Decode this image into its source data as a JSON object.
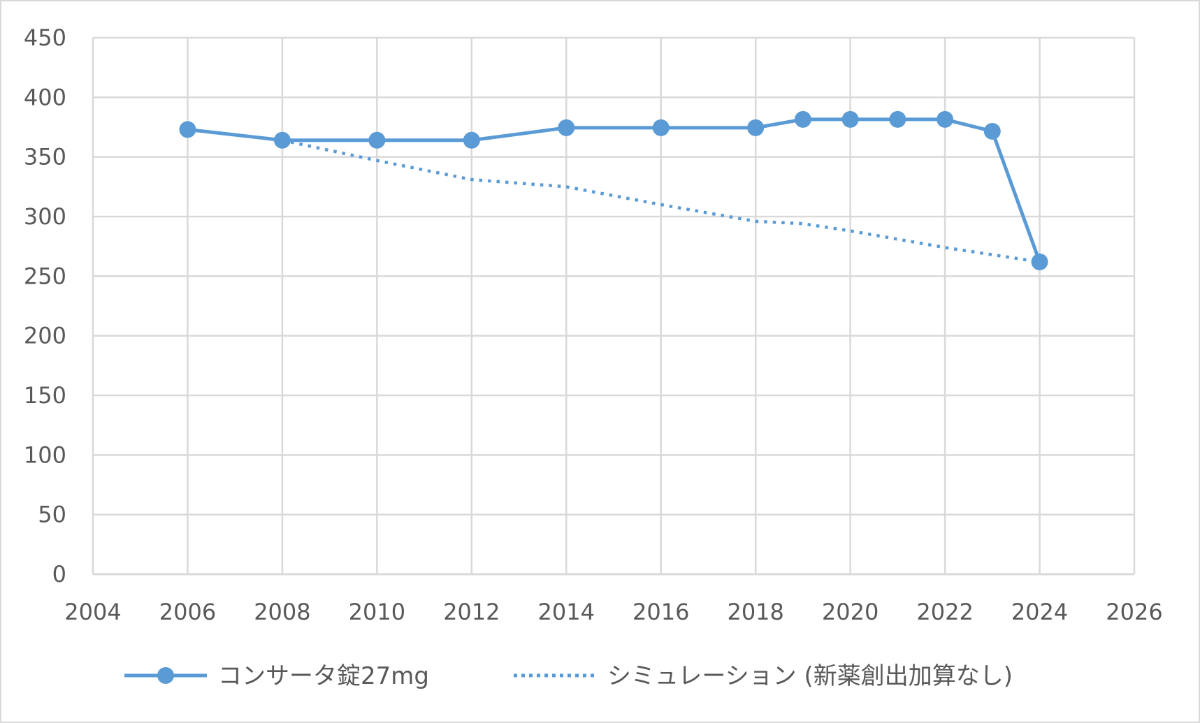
{
  "chart_data": {
    "type": "line",
    "title": "",
    "xlabel": "",
    "ylabel": "",
    "xlim": [
      2004,
      2026
    ],
    "ylim": [
      0,
      450
    ],
    "x_ticks": [
      2004,
      2006,
      2008,
      2010,
      2012,
      2014,
      2016,
      2018,
      2020,
      2022,
      2024,
      2026
    ],
    "y_ticks": [
      0,
      50,
      100,
      150,
      200,
      250,
      300,
      350,
      400,
      450
    ],
    "grid": true,
    "legend_position": "bottom",
    "series": [
      {
        "name": "コンサータ錠27mg",
        "style": "solid",
        "markers": true,
        "color": "#5b9bd5",
        "points": [
          {
            "x": 2006,
            "y": 373
          },
          {
            "x": 2008,
            "y": 364
          },
          {
            "x": 2010,
            "y": 364
          },
          {
            "x": 2012,
            "y": 364
          },
          {
            "x": 2014,
            "y": 374.5
          },
          {
            "x": 2016,
            "y": 374.5
          },
          {
            "x": 2018,
            "y": 374.5
          },
          {
            "x": 2019,
            "y": 381.5
          },
          {
            "x": 2020,
            "y": 381.5
          },
          {
            "x": 2021,
            "y": 381.5
          },
          {
            "x": 2022,
            "y": 381.5
          },
          {
            "x": 2023,
            "y": 371.5
          },
          {
            "x": 2024,
            "y": 262
          }
        ]
      },
      {
        "name": "シミュレーション (新薬創出加算なし)",
        "style": "dotted",
        "markers": false,
        "color": "#5b9bd5",
        "points": [
          {
            "x": 2008,
            "y": 364
          },
          {
            "x": 2010,
            "y": 347
          },
          {
            "x": 2012,
            "y": 331
          },
          {
            "x": 2014,
            "y": 325
          },
          {
            "x": 2016,
            "y": 310
          },
          {
            "x": 2018,
            "y": 296
          },
          {
            "x": 2019,
            "y": 294
          },
          {
            "x": 2020,
            "y": 288
          },
          {
            "x": 2022,
            "y": 274
          },
          {
            "x": 2024,
            "y": 262
          }
        ]
      }
    ]
  },
  "colors": {
    "series": "#5b9bd5",
    "grid": "#d9d9d9",
    "axis_text": "#595959",
    "background": "#ffffff"
  }
}
